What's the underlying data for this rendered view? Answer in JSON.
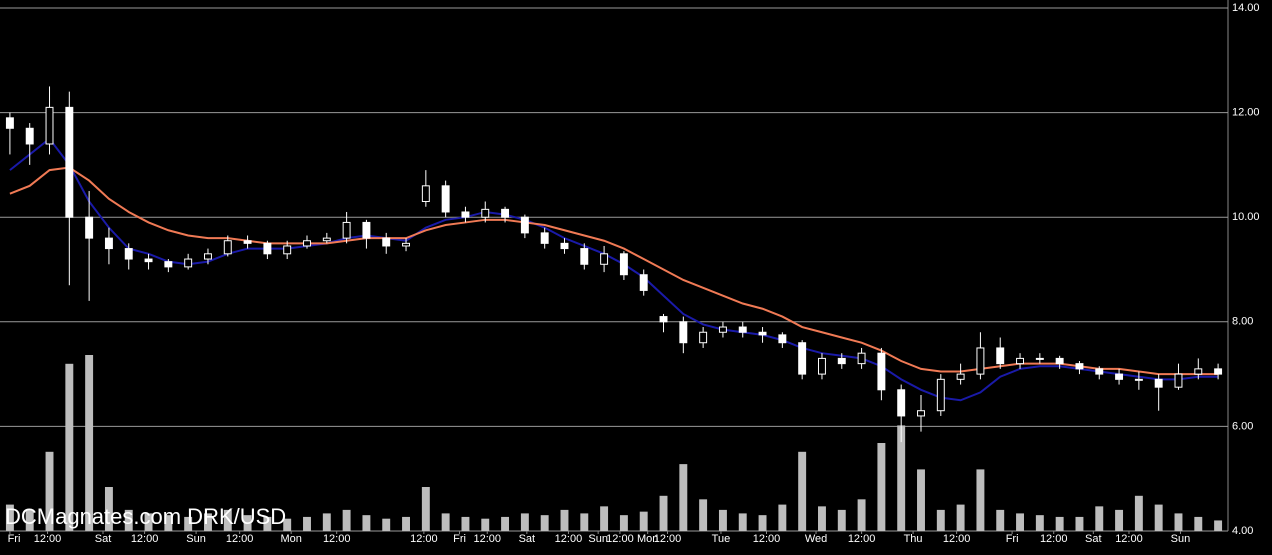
{
  "chart_data": {
    "type": "candlestick",
    "watermark": "DCMagnates.com DRK/USD",
    "open": [
      11.9,
      11.7,
      11.4,
      12.1,
      10.0,
      9.6,
      9.4,
      9.2,
      9.15,
      9.05,
      9.2,
      9.3,
      9.55,
      9.5,
      9.3,
      9.45,
      9.55,
      9.6,
      9.9,
      9.6,
      9.45,
      10.3,
      10.6,
      10.1,
      10.0,
      10.15,
      10.0,
      9.7,
      9.5,
      9.4,
      9.1,
      9.3,
      8.9,
      8.1,
      8.0,
      7.6,
      7.8,
      7.9,
      7.8,
      7.75,
      7.6,
      7.0,
      7.3,
      7.2,
      7.4,
      6.7,
      6.2,
      6.3,
      6.9,
      7.0,
      7.5,
      7.2,
      7.3,
      7.3,
      7.2,
      7.1,
      7.0,
      6.9,
      6.9,
      6.75,
      7.0,
      7.1
    ],
    "high": [
      12.0,
      11.8,
      12.5,
      12.4,
      10.5,
      9.8,
      9.5,
      9.3,
      9.2,
      9.3,
      9.4,
      9.65,
      9.65,
      9.55,
      9.55,
      9.65,
      9.7,
      10.1,
      9.95,
      9.7,
      9.6,
      10.9,
      10.7,
      10.2,
      10.3,
      10.2,
      10.05,
      9.8,
      9.6,
      9.5,
      9.45,
      9.35,
      9.0,
      8.15,
      8.1,
      7.9,
      8.0,
      8.0,
      7.9,
      7.8,
      7.65,
      7.4,
      7.4,
      7.5,
      7.5,
      6.8,
      6.6,
      7.0,
      7.2,
      7.8,
      7.7,
      7.4,
      7.4,
      7.35,
      7.25,
      7.15,
      7.1,
      7.05,
      7.0,
      7.2,
      7.3,
      7.2
    ],
    "low": [
      11.2,
      11.0,
      11.2,
      8.7,
      8.4,
      9.1,
      9.0,
      9.0,
      8.95,
      9.0,
      9.1,
      9.25,
      9.4,
      9.2,
      9.2,
      9.4,
      9.5,
      9.5,
      9.4,
      9.3,
      9.35,
      10.2,
      10.0,
      9.9,
      9.9,
      9.9,
      9.6,
      9.4,
      9.3,
      9.0,
      8.95,
      8.8,
      8.5,
      7.8,
      7.4,
      7.5,
      7.7,
      7.7,
      7.6,
      7.5,
      6.9,
      6.9,
      7.1,
      7.1,
      6.5,
      5.7,
      5.9,
      6.2,
      6.8,
      6.9,
      7.1,
      7.1,
      7.2,
      7.1,
      7.0,
      6.9,
      6.8,
      6.7,
      6.3,
      6.7,
      6.9,
      6.9
    ],
    "close": [
      11.7,
      11.4,
      12.1,
      10.0,
      9.6,
      9.4,
      9.2,
      9.15,
      9.05,
      9.2,
      9.3,
      9.55,
      9.5,
      9.3,
      9.45,
      9.55,
      9.6,
      9.9,
      9.6,
      9.45,
      9.5,
      10.6,
      10.1,
      10.0,
      10.15,
      10.0,
      9.7,
      9.5,
      9.4,
      9.1,
      9.3,
      8.9,
      8.6,
      8.0,
      7.6,
      7.8,
      7.9,
      7.8,
      7.75,
      7.6,
      7.0,
      7.3,
      7.2,
      7.4,
      6.7,
      6.2,
      6.3,
      6.9,
      7.0,
      7.5,
      7.2,
      7.3,
      7.3,
      7.2,
      7.1,
      7.0,
      6.9,
      6.9,
      6.75,
      7.0,
      7.1,
      7.0
    ],
    "volume": [
      15,
      12,
      45,
      95,
      100,
      25,
      12,
      10,
      9,
      8,
      10,
      12,
      9,
      8,
      7,
      8,
      10,
      12,
      9,
      7,
      8,
      25,
      10,
      8,
      7,
      8,
      10,
      9,
      12,
      10,
      14,
      9,
      11,
      20,
      38,
      18,
      12,
      10,
      9,
      15,
      45,
      14,
      12,
      18,
      50,
      60,
      35,
      12,
      15,
      35,
      12,
      10,
      9,
      8,
      8,
      14,
      12,
      20,
      15,
      10,
      8,
      6
    ],
    "volume_color": "#bdbdbd",
    "up_color": "#000000",
    "down_color": "#ffffff",
    "candle_outline": "#ffffff",
    "moving_averages": [
      {
        "color": "#1a1aa8",
        "values": [
          10.9,
          11.2,
          11.5,
          11.0,
          10.3,
          9.8,
          9.4,
          9.3,
          9.15,
          9.1,
          9.15,
          9.3,
          9.4,
          9.4,
          9.4,
          9.45,
          9.5,
          9.6,
          9.65,
          9.6,
          9.55,
          9.8,
          9.95,
          10.0,
          10.1,
          10.05,
          9.95,
          9.8,
          9.6,
          9.45,
          9.3,
          9.1,
          8.85,
          8.5,
          8.15,
          7.95,
          7.85,
          7.8,
          7.75,
          7.65,
          7.5,
          7.4,
          7.35,
          7.3,
          7.15,
          6.9,
          6.7,
          6.55,
          6.5,
          6.65,
          6.95,
          7.1,
          7.15,
          7.15,
          7.1,
          7.05,
          7.0,
          6.95,
          6.9,
          6.9,
          6.95,
          6.95
        ]
      },
      {
        "color": "#f07a55",
        "values": [
          10.45,
          10.6,
          10.9,
          10.95,
          10.7,
          10.35,
          10.1,
          9.9,
          9.75,
          9.65,
          9.6,
          9.6,
          9.55,
          9.5,
          9.5,
          9.5,
          9.5,
          9.55,
          9.6,
          9.6,
          9.6,
          9.75,
          9.85,
          9.9,
          9.95,
          9.95,
          9.9,
          9.85,
          9.75,
          9.65,
          9.55,
          9.4,
          9.2,
          9.0,
          8.8,
          8.65,
          8.5,
          8.35,
          8.25,
          8.1,
          7.9,
          7.8,
          7.7,
          7.6,
          7.45,
          7.25,
          7.1,
          7.05,
          7.05,
          7.1,
          7.15,
          7.2,
          7.2,
          7.2,
          7.15,
          7.1,
          7.1,
          7.05,
          7.0,
          7.0,
          7.0,
          7.0
        ]
      }
    ],
    "ylim": [
      4,
      14
    ],
    "yticks": [
      {
        "value": 4,
        "label": "4.00"
      },
      {
        "value": 6,
        "label": "6.00"
      },
      {
        "value": 8,
        "label": "8.00"
      },
      {
        "value": 10,
        "label": "10.00"
      },
      {
        "value": 12,
        "label": "12.00"
      },
      {
        "value": 14,
        "label": "14.00"
      }
    ],
    "y2lim": [
      0,
      100
    ],
    "xlim": [
      -0.5,
      61.5
    ],
    "xticks": [
      {
        "value": 0,
        "label": "Fri"
      },
      {
        "value": 1.9,
        "label": "12:00"
      },
      {
        "value": 4.7,
        "label": "Sat"
      },
      {
        "value": 6.8,
        "label": "12:00"
      },
      {
        "value": 9.4,
        "label": "Sun"
      },
      {
        "value": 11.6,
        "label": "12:00"
      },
      {
        "value": 14.2,
        "label": "Mon"
      },
      {
        "value": 16.5,
        "label": "12:00"
      },
      {
        "value": 20.9,
        "label": "12:00"
      },
      {
        "value": 22.7,
        "label": "Fri"
      },
      {
        "value": 24.1,
        "label": "12:00"
      },
      {
        "value": 26.1,
        "label": "Sat"
      },
      {
        "value": 28.2,
        "label": "12:00"
      },
      {
        "value": 29.7,
        "label": "Sun"
      },
      {
        "value": 30.8,
        "label": "12:00"
      },
      {
        "value": 32.2,
        "label": "Mon"
      },
      {
        "value": 33.2,
        "label": "12:00"
      },
      {
        "value": 35.9,
        "label": "Tue"
      },
      {
        "value": 38.2,
        "label": "12:00"
      },
      {
        "value": 40.7,
        "label": "Wed"
      },
      {
        "value": 43.0,
        "label": "12:00"
      },
      {
        "value": 45.6,
        "label": "Thu"
      },
      {
        "value": 47.8,
        "label": "12:00"
      },
      {
        "value": 50.6,
        "label": "Fri"
      },
      {
        "value": 52.7,
        "label": "12:00"
      },
      {
        "value": 54.7,
        "label": "Sat"
      },
      {
        "value": 56.5,
        "label": "12:00"
      },
      {
        "value": 59.1,
        "label": "Sun"
      }
    ],
    "grid": true
  }
}
